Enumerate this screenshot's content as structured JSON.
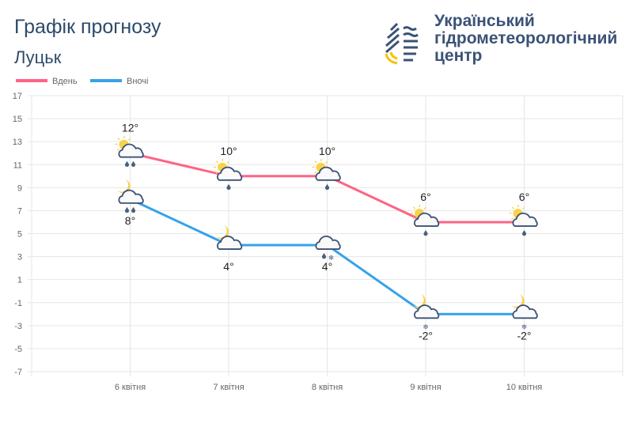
{
  "header": {
    "title": "Графік прогнозу",
    "city": "Луцьк"
  },
  "logo": {
    "lines": [
      "Український",
      "гідрометеорологічний",
      "центр"
    ]
  },
  "chart_data": {
    "type": "line",
    "categories": [
      "6 квітня",
      "7 квітня",
      "8 квітня",
      "9 квітня",
      "10 квітня"
    ],
    "ylim": [
      -7,
      17
    ],
    "yticks": [
      17,
      15,
      13,
      11,
      9,
      7,
      5,
      3,
      1,
      -1,
      -3,
      -5,
      -7
    ],
    "grid": true,
    "legend_position": "top-left",
    "series": [
      {
        "name": "Вдень",
        "color": "#ff6384",
        "values": [
          12,
          10,
          10,
          6,
          6
        ],
        "labels": [
          "12°",
          "10°",
          "10°",
          "6°",
          "6°"
        ],
        "icons": [
          "sun-cloud-rain-2",
          "sun-cloud-rain-1",
          "sun-cloud-rain-1",
          "sun-cloud-rain-1",
          "sun-cloud-rain-1"
        ]
      },
      {
        "name": "Вночі",
        "color": "#36a2eb",
        "values": [
          8,
          4,
          4,
          -2,
          -2
        ],
        "labels": [
          "8°",
          "4°",
          "4°",
          "-2°",
          "-2°"
        ],
        "icons": [
          "moon-cloud-rain-2",
          "moon-cloud",
          "cloud-rain-snow",
          "moon-cloud-snow",
          "moon-cloud-snow"
        ]
      }
    ]
  }
}
